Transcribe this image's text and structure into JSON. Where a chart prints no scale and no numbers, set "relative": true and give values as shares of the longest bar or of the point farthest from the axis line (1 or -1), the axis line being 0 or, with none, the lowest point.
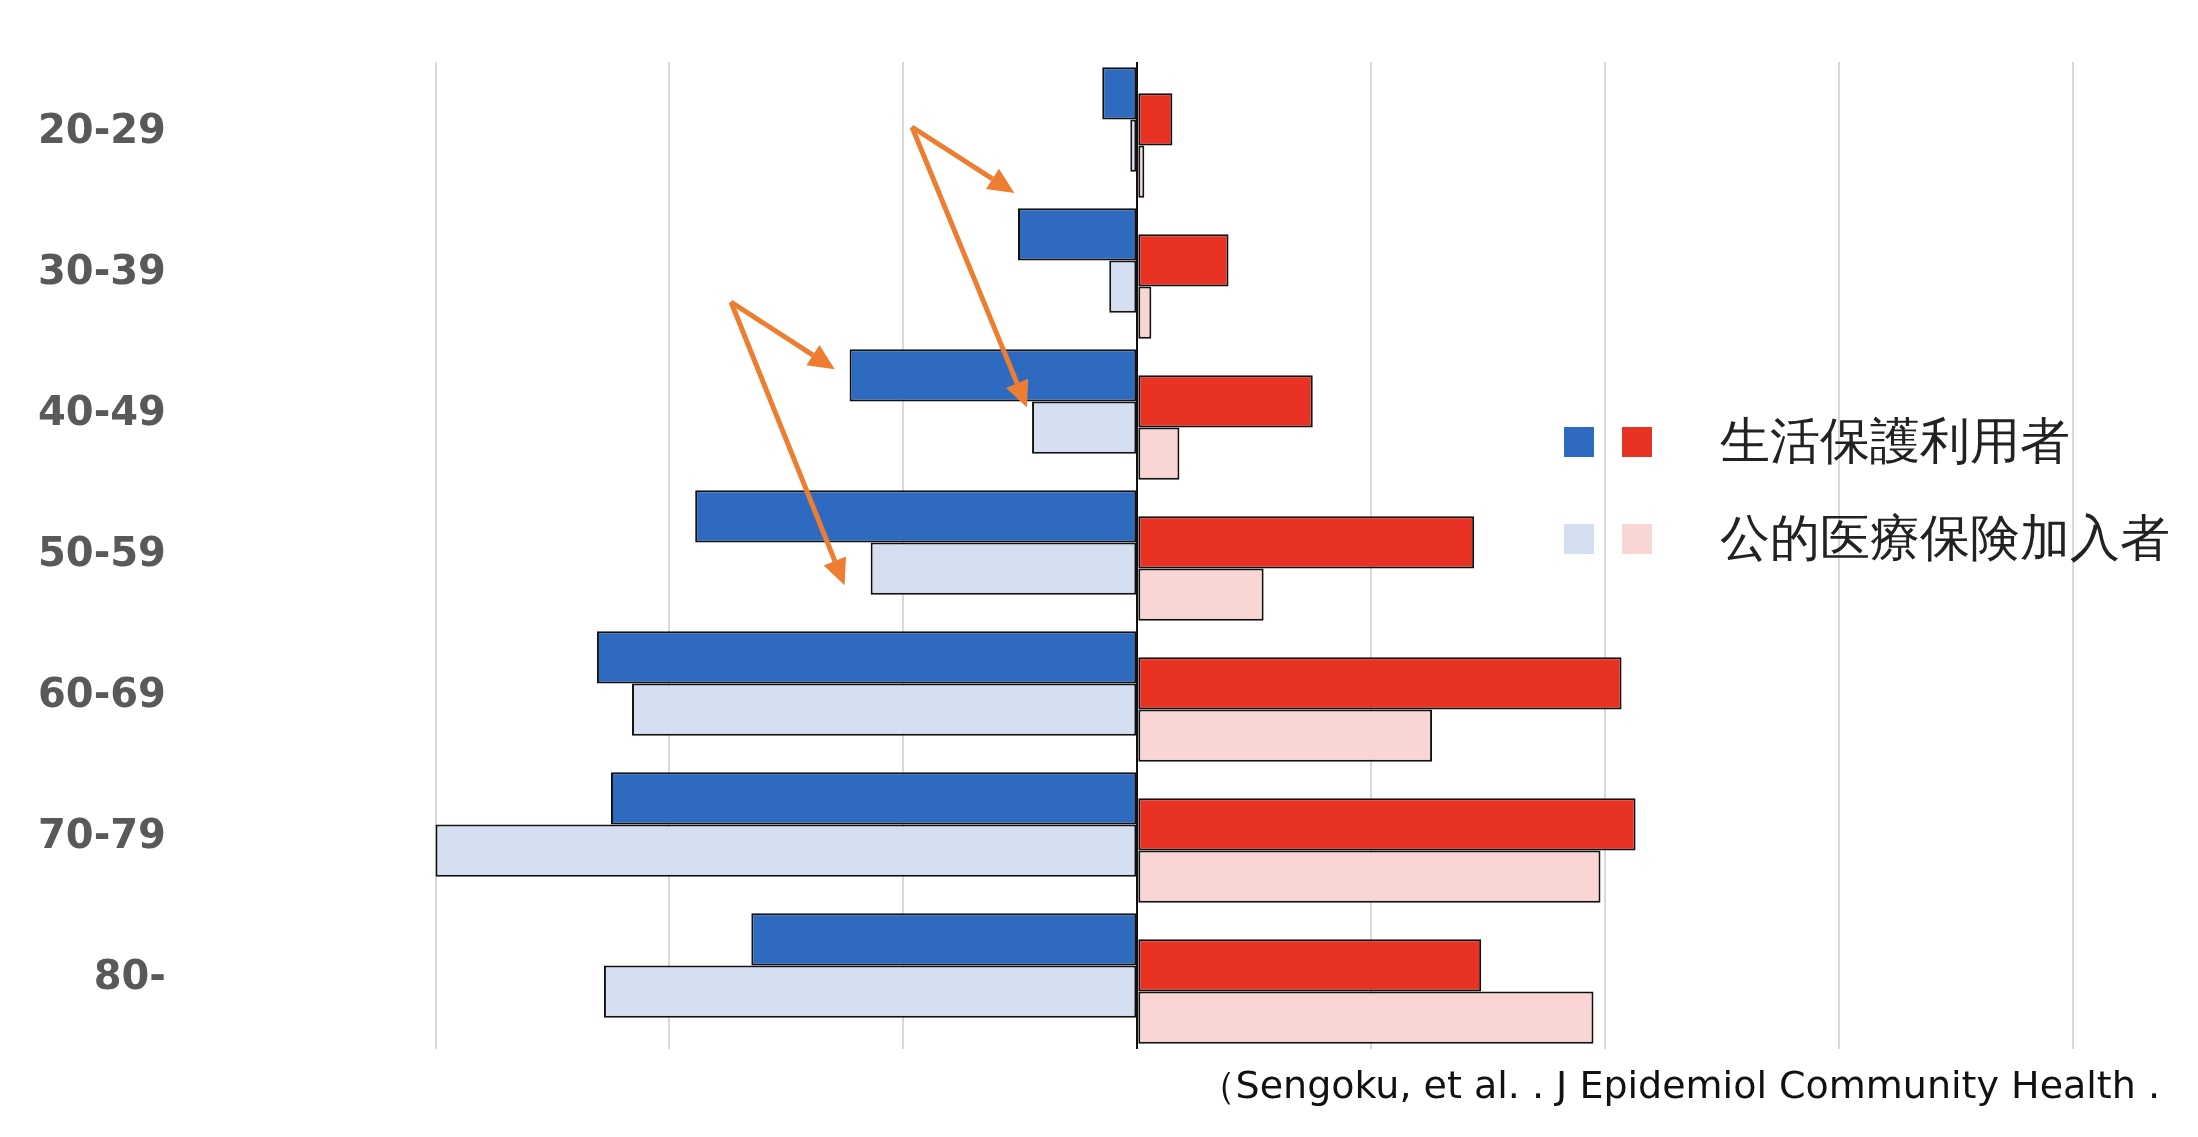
{
  "chart_data": {
    "type": "bar",
    "orientation": "horizontal",
    "relative": true,
    "categories": [
      "20-29",
      "30-39",
      "40-49",
      "50-59",
      "60-69",
      "70-79",
      "80-"
    ],
    "series": [
      {
        "color": "#2e6bc0",
        "values": [
          -0.05,
          -0.17,
          -0.41,
          -0.63,
          -0.77,
          -0.75,
          -0.55
        ]
      },
      {
        "name": "生活保護利用者",
        "color": "#e83224",
        "values": [
          0.05,
          0.13,
          0.25,
          0.48,
          0.69,
          0.71,
          0.49
        ]
      },
      {
        "color": "#d4e0f1",
        "values": [
          -0.01,
          -0.04,
          -0.15,
          -0.38,
          -0.72,
          -1,
          -0.76
        ]
      },
      {
        "name": "公的医療保険加入者",
        "color": "#f9d5d4",
        "values": [
          0.01,
          0.02,
          0.06,
          0.18,
          0.42,
          0.66,
          0.65
        ]
      }
    ],
    "grid": "x",
    "legend": "right",
    "tick_labels": "y",
    "annotations": [
      "（Sengoku, et al. . J Epidemiol Community Health ."
    ]
  }
}
